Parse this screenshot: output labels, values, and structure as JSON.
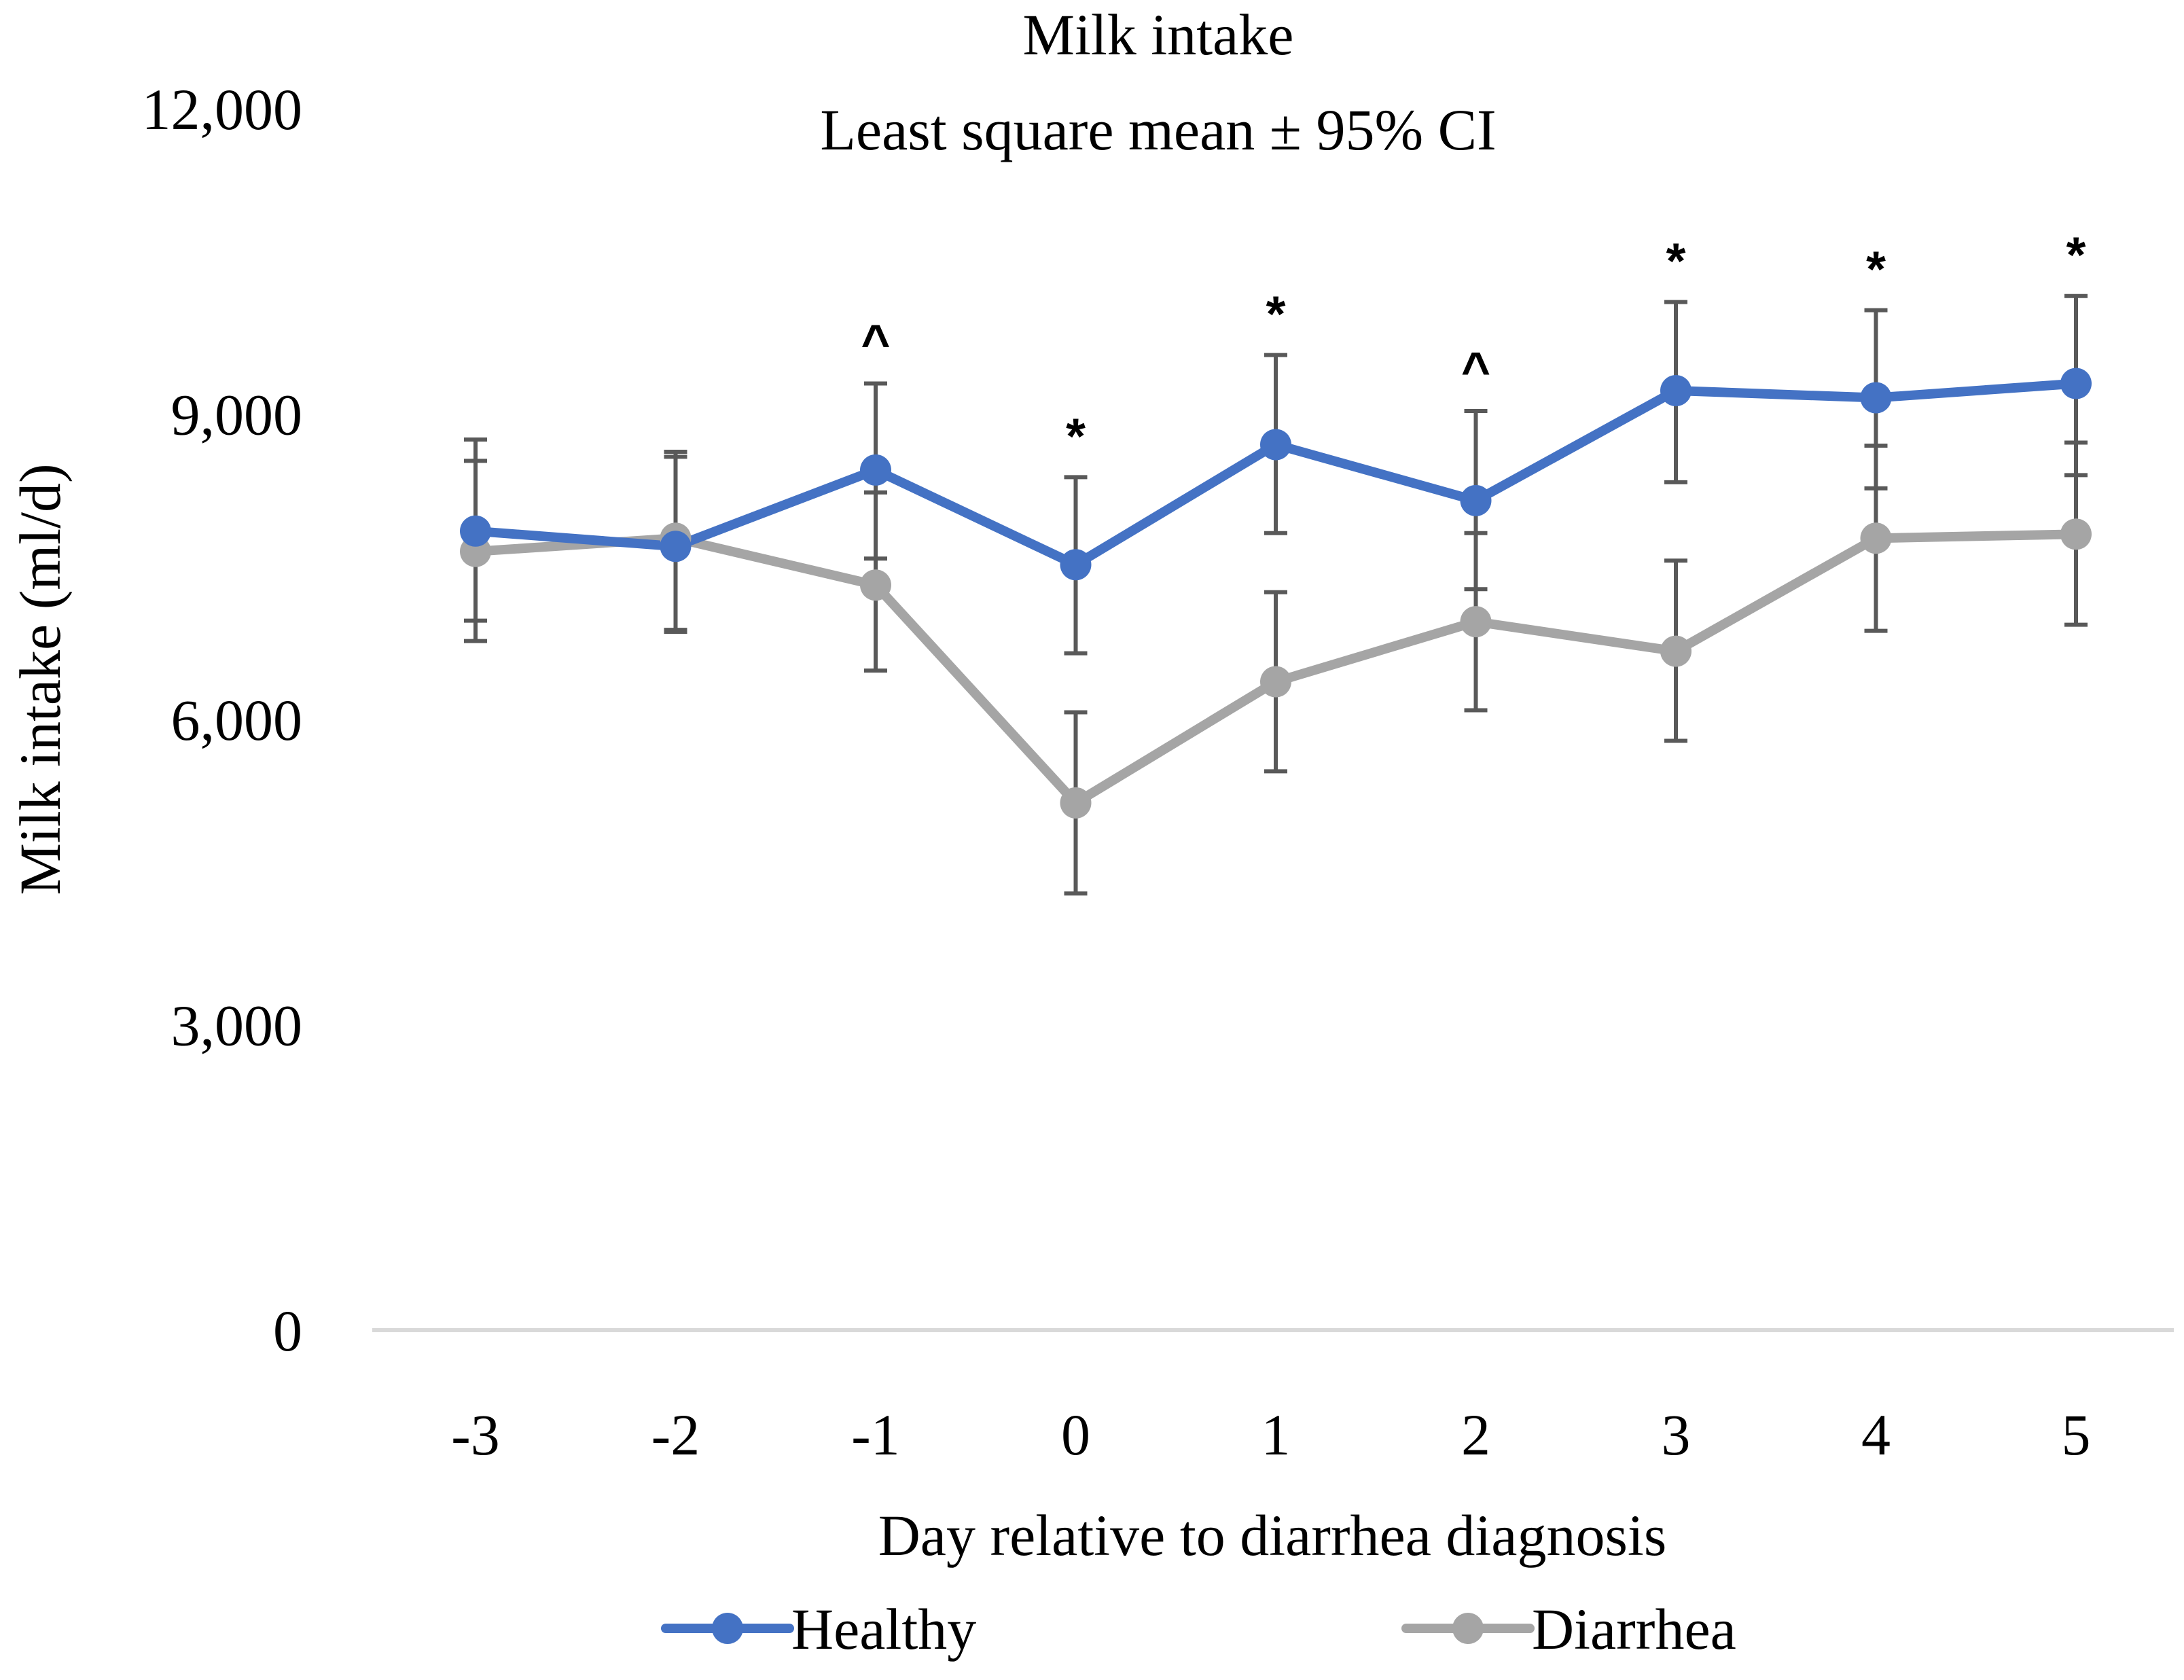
{
  "chart_data": {
    "type": "line",
    "title": "Milk intake",
    "subtitle": "Least square mean ± 95% CI",
    "xlabel": "Day relative to diarrhea diagnosis",
    "ylabel": "Milk intake (ml/d)",
    "categories": [
      "-3",
      "-2",
      "-1",
      "0",
      "1",
      "2",
      "3",
      "4",
      "5"
    ],
    "ylim": [
      0,
      12000
    ],
    "yticks": [
      0,
      3000,
      6000,
      9000,
      12000
    ],
    "ytick_labels": [
      "0",
      "3,000",
      "6,000",
      "9,000",
      "12,000"
    ],
    "grid": false,
    "legend_position": "bottom",
    "series": [
      {
        "name": "Healthy",
        "color": "#4472C4",
        "values": [
          7850,
          7700,
          8450,
          7520,
          8700,
          8150,
          9230,
          9160,
          9300
        ],
        "ci_lower": [
          6970,
          6860,
          7580,
          6650,
          7830,
          7280,
          8330,
          8270,
          8400
        ],
        "ci_upper": [
          8750,
          8580,
          9300,
          8380,
          9580,
          9030,
          10100,
          10020,
          10160
        ]
      },
      {
        "name": "Diarrhea",
        "color": "#A5A5A5",
        "values": [
          7650,
          7780,
          7320,
          5180,
          6370,
          6960,
          6670,
          7780,
          7820
        ],
        "ci_lower": [
          6770,
          6880,
          6480,
          4290,
          5490,
          6090,
          5790,
          6870,
          6930
        ],
        "ci_upper": [
          8540,
          8630,
          8230,
          6070,
          7250,
          7830,
          7560,
          8690,
          8720
        ]
      }
    ],
    "annotations": [
      "",
      "",
      "^",
      "*",
      "*",
      "^",
      "*",
      "*",
      "*"
    ],
    "colors": {
      "axis": "#D9D9D9",
      "error_bar": "#595959",
      "text": "#000000"
    }
  }
}
